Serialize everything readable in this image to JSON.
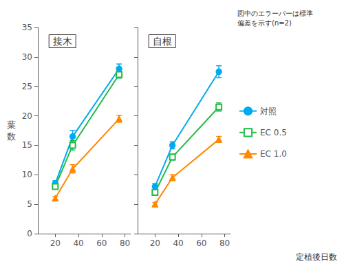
{
  "chart_data": [
    {
      "type": "line",
      "title": "接木",
      "ylabel": "葉\n数",
      "x": [
        20,
        35,
        75
      ],
      "series": [
        {
          "name": "対照",
          "color": "#00AAEE",
          "marker": "circle",
          "values": [
            8.5,
            16.5,
            28.0
          ],
          "yerr": [
            0.5,
            1.0,
            0.8
          ]
        },
        {
          "name": "EC 0.5",
          "color": "#22BB44",
          "marker": "open-square",
          "values": [
            8.0,
            15.0,
            27.0
          ],
          "yerr": [
            0.4,
            0.8,
            0.6
          ]
        },
        {
          "name": "EC 1.0",
          "color": "#FF8800",
          "marker": "triangle",
          "values": [
            6.0,
            11.0,
            19.5
          ],
          "yerr": [
            0.3,
            0.7,
            0.6
          ]
        }
      ],
      "xlim": [
        5,
        85
      ],
      "xticks": [
        20,
        40,
        60,
        80
      ],
      "ylim": [
        0,
        35
      ],
      "yticks": [
        0,
        5,
        10,
        15,
        20,
        25,
        30,
        35
      ],
      "grid": false
    },
    {
      "type": "line",
      "title": "自根",
      "xlabel": "定植後日数",
      "annotation": "図中のエラーバーは標準\n偏差を示す(n=2)",
      "x": [
        20,
        35,
        75
      ],
      "series": [
        {
          "name": "対照",
          "color": "#00AAEE",
          "marker": "circle",
          "values": [
            8.0,
            15.0,
            27.5
          ],
          "yerr": [
            0.5,
            0.6,
            1.0
          ]
        },
        {
          "name": "EC 0.5",
          "color": "#22BB44",
          "marker": "open-square",
          "values": [
            7.0,
            13.0,
            21.5
          ],
          "yerr": [
            0.4,
            0.5,
            0.7
          ]
        },
        {
          "name": "EC 1.0",
          "color": "#FF8800",
          "marker": "triangle",
          "values": [
            5.0,
            9.5,
            16.0
          ],
          "yerr": [
            0.3,
            0.5,
            0.5
          ]
        }
      ],
      "xlim": [
        5,
        85
      ],
      "xticks": [
        20,
        40,
        60,
        80
      ],
      "ylim": [
        0,
        35
      ],
      "yticks": [
        0,
        5,
        10,
        15,
        20,
        25,
        30,
        35
      ],
      "grid": false,
      "legend": "right",
      "tick_labels": "x"
    }
  ]
}
